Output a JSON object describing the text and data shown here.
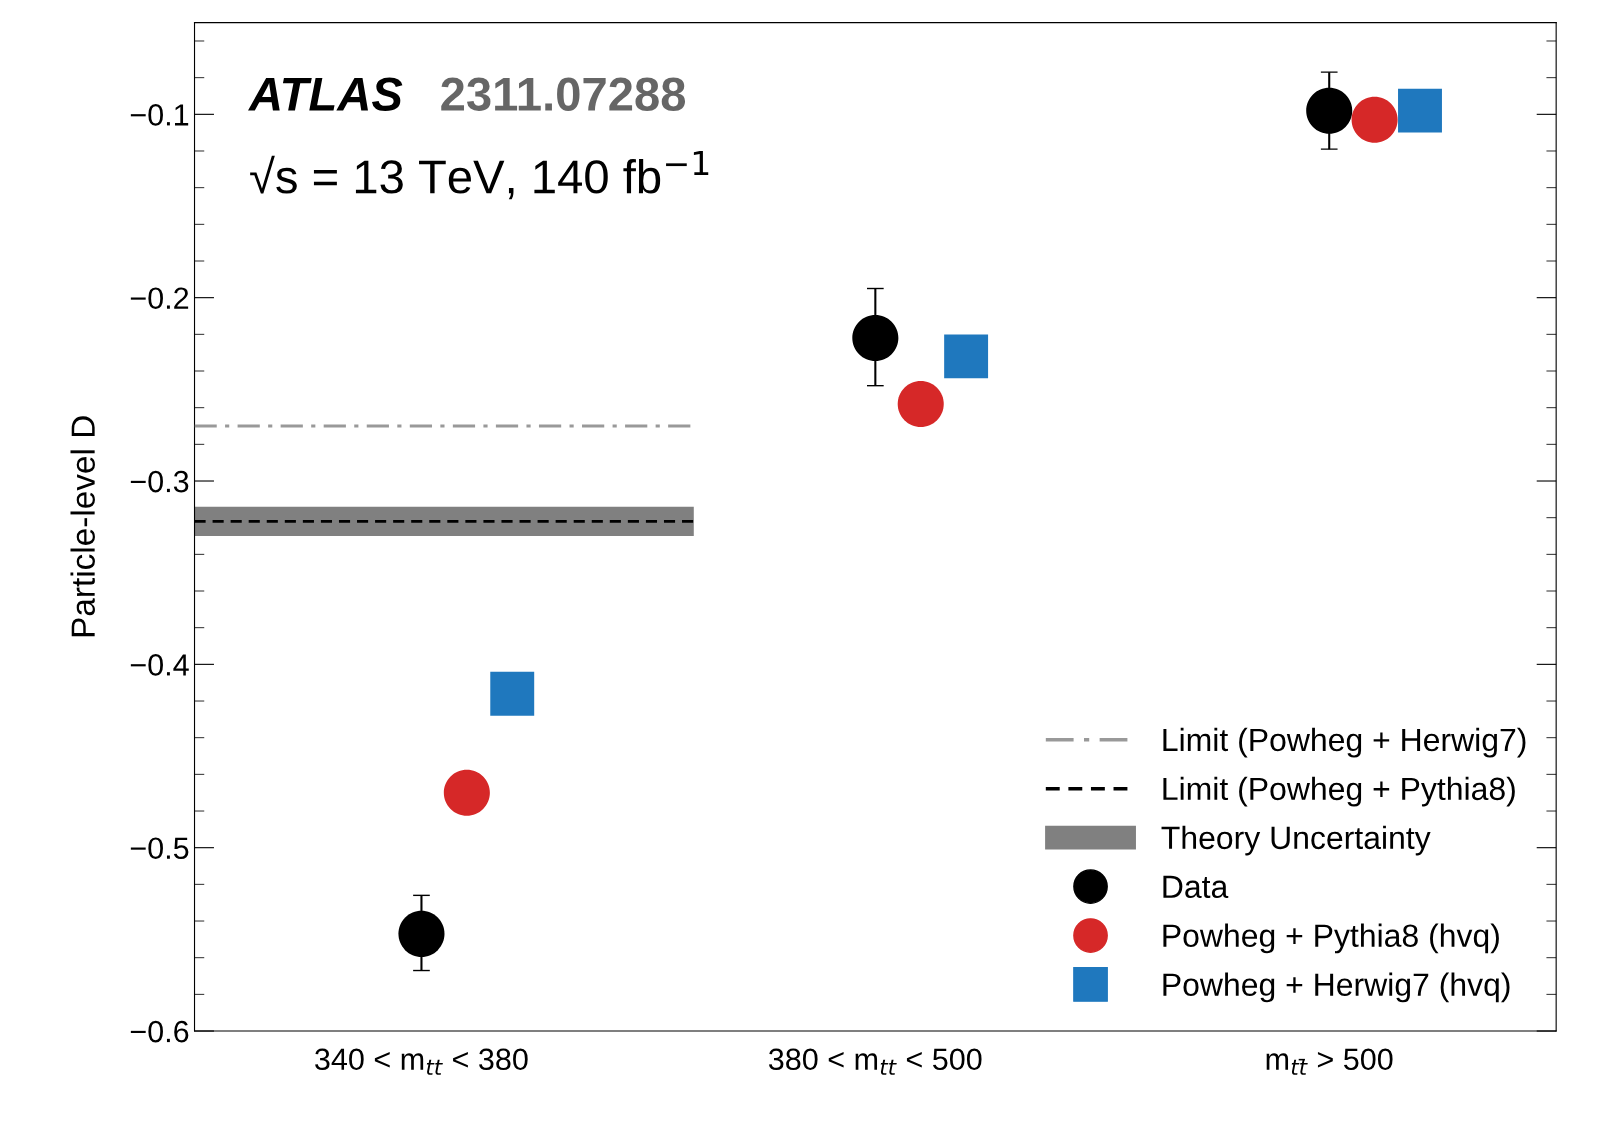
{
  "chart_data": {
    "type": "scatter",
    "ylabel": "Particle-level D",
    "categories": [
      "340 < m$_{tt}$ < 380",
      "380 < m$_{tt}$ < 500",
      "m$_{tt̄}$ > 500"
    ],
    "series": [
      {
        "name": "Data",
        "color": "#000000",
        "marker": "circle",
        "values": [
          -0.547,
          -0.222,
          -0.098
        ],
        "errors": [
          [
            -0.567,
            -0.526
          ],
          [
            -0.248,
            -0.195
          ],
          [
            -0.119,
            -0.077
          ]
        ]
      },
      {
        "name": "Powheg + Pythia8 (hvq)",
        "color": "#d62828",
        "marker": "circle",
        "values": [
          -0.47,
          -0.258,
          -0.103
        ]
      },
      {
        "name": "Powheg + Herwig7 (hvq)",
        "color": "#1f78be",
        "marker": "square",
        "values": [
          -0.416,
          -0.232,
          -0.098
        ]
      }
    ],
    "ref_lines": [
      {
        "axis": "y",
        "value": -0.27,
        "label": "Limit (Powheg + Herwig7)",
        "color": "#999999",
        "line_style": "dashdot"
      },
      {
        "axis": "y",
        "value": -0.322,
        "label": "Limit (Powheg + Pythia8)",
        "color": "#000000",
        "line_style": "dashed"
      }
    ],
    "bands": [
      {
        "axis": "y",
        "from": -0.33,
        "to": -0.314,
        "label": "Theory Uncertainty",
        "color": "#808080"
      }
    ],
    "annotations": [
      "ATLAS",
      "2311.07288",
      "√s = 13 TeV, 140 fb$^{−1}$"
    ],
    "ylim": [
      -0.6,
      -0.05
    ],
    "yticks": [
      {
        "value": -0.6,
        "label": "−0.6"
      },
      {
        "value": -0.5,
        "label": "−0.5"
      },
      {
        "value": -0.4,
        "label": "−0.4"
      },
      {
        "value": -0.3,
        "label": "−0.3"
      },
      {
        "value": -0.2,
        "label": "−0.2"
      },
      {
        "value": -0.1,
        "label": "−0.1"
      }
    ],
    "grid": false,
    "legend": "bottom right"
  }
}
